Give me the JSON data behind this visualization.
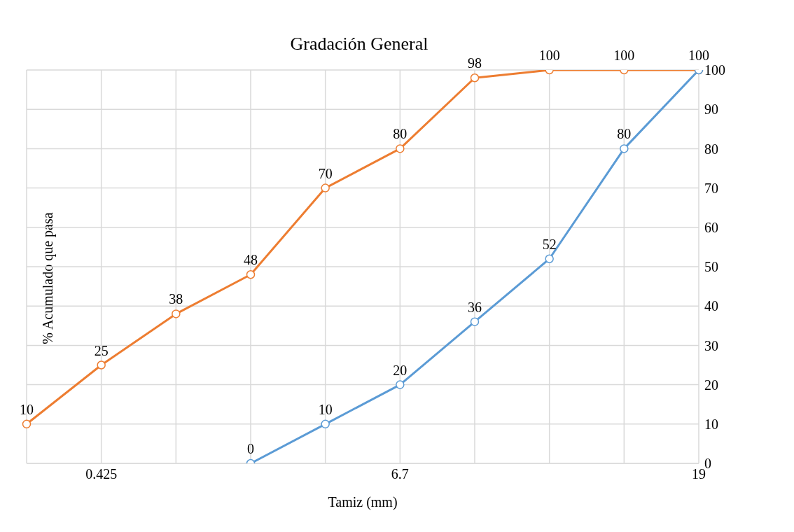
{
  "chart_data": {
    "type": "line",
    "title": "Gradación General",
    "xlabel": "Tamiz (mm)",
    "ylabel": "% Acumulado que pasa",
    "categories": [
      null,
      "0.425",
      null,
      null,
      null,
      "6.7",
      null,
      null,
      null,
      "19"
    ],
    "series": [
      {
        "color": "#ed7d31",
        "values": [
          10,
          25,
          38,
          48,
          70,
          80,
          98,
          100,
          100,
          100
        ]
      },
      {
        "color": "#5b9bd5",
        "values": [
          null,
          null,
          null,
          0,
          10,
          20,
          36,
          52,
          80,
          100
        ],
        "value_labels": [
          null,
          null,
          null,
          "0",
          "10",
          "20",
          "36",
          "52",
          "80",
          null
        ]
      }
    ],
    "ylim": [
      0,
      100
    ],
    "yticks": [
      0,
      10,
      20,
      30,
      40,
      50,
      60,
      70,
      80,
      90,
      100
    ],
    "grid": true,
    "marker": "circle",
    "data_labels": true,
    "legend": false
  }
}
